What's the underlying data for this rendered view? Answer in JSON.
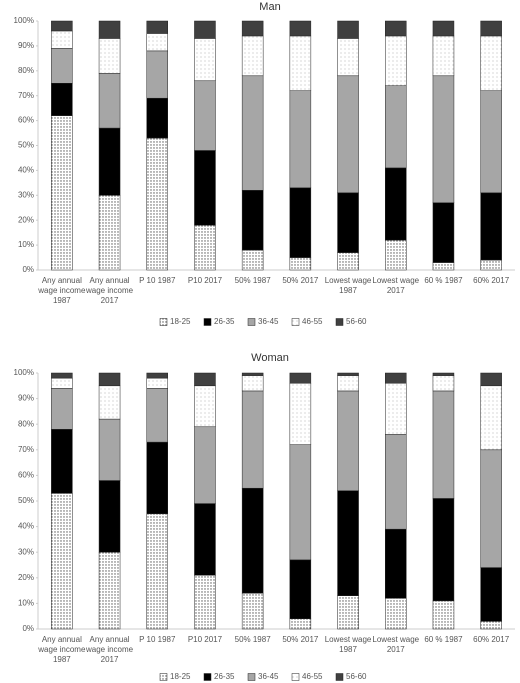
{
  "chart_data": [
    {
      "type": "stacked-bar",
      "title": "Man",
      "categories": [
        [
          "Any annual",
          "wage income",
          "1987"
        ],
        [
          "Any annual",
          "wage income",
          "2017"
        ],
        [
          "P 10 1987"
        ],
        [
          "P10 2017"
        ],
        [
          "50% 1987"
        ],
        [
          "50% 2017"
        ],
        [
          "Lowest wage",
          "1987"
        ],
        [
          "Lowest wage",
          "2017"
        ],
        [
          "60 % 1987"
        ],
        [
          "60% 2017"
        ]
      ],
      "series": [
        {
          "name": "18-25",
          "color": "#e6e6e6",
          "pattern": "dots",
          "values": [
            62,
            30,
            53,
            18,
            8,
            5,
            7,
            12,
            3,
            4
          ]
        },
        {
          "name": "26-35",
          "color": "#000000",
          "values": [
            13,
            27,
            16,
            30,
            24,
            28,
            24,
            29,
            24,
            27
          ]
        },
        {
          "name": "36-45",
          "color": "#a6a6a6",
          "values": [
            14,
            22,
            19,
            28,
            46,
            39,
            47,
            33,
            51,
            41
          ]
        },
        {
          "name": "46-55",
          "color": "#f7f7f7",
          "pattern": "dots",
          "values": [
            7,
            14,
            7,
            17,
            16,
            22,
            15,
            20,
            16,
            22
          ]
        },
        {
          "name": "56-60",
          "color": "#404040",
          "values": [
            4,
            7,
            5,
            7,
            6,
            6,
            7,
            6,
            6,
            6
          ]
        }
      ],
      "ylim": [
        0,
        100
      ],
      "yticks": [
        {
          "value": 0,
          "label": "0%"
        },
        {
          "value": 10,
          "label": "10%"
        },
        {
          "value": 20,
          "label": "20%"
        },
        {
          "value": 30,
          "label": "30%"
        },
        {
          "value": 40,
          "label": "40%"
        },
        {
          "value": 50,
          "label": "50%"
        },
        {
          "value": 60,
          "label": "60%"
        },
        {
          "value": 70,
          "label": "70%"
        },
        {
          "value": 80,
          "label": "80%"
        },
        {
          "value": 90,
          "label": "90%"
        },
        {
          "value": 100,
          "label": "100%"
        }
      ],
      "legend": "bottom"
    },
    {
      "type": "stacked-bar",
      "title": "Woman",
      "categories": [
        [
          "Any annual",
          "wage income",
          "1987"
        ],
        [
          "Any annual",
          "wage income",
          "2017"
        ],
        [
          "P 10 1987"
        ],
        [
          "P10 2017"
        ],
        [
          "50% 1987"
        ],
        [
          "50% 2017"
        ],
        [
          "Lowest wage",
          "1987"
        ],
        [
          "Lowest wage",
          "2017"
        ],
        [
          "60 % 1987"
        ],
        [
          "60% 2017"
        ]
      ],
      "series": [
        {
          "name": "18-25",
          "color": "#e6e6e6",
          "pattern": "dots",
          "values": [
            53,
            30,
            45,
            21,
            14,
            4,
            13,
            12,
            11,
            3
          ]
        },
        {
          "name": "26-35",
          "color": "#000000",
          "values": [
            25,
            28,
            28,
            28,
            41,
            23,
            41,
            27,
            40,
            21
          ]
        },
        {
          "name": "36-45",
          "color": "#a6a6a6",
          "values": [
            16,
            24,
            21,
            30,
            38,
            45,
            39,
            37,
            42,
            46
          ]
        },
        {
          "name": "46-55",
          "color": "#f7f7f7",
          "pattern": "dots",
          "values": [
            4,
            13,
            4,
            16,
            6,
            24,
            6,
            20,
            6,
            25
          ]
        },
        {
          "name": "56-60",
          "color": "#404040",
          "values": [
            2,
            5,
            2,
            5,
            1,
            4,
            1,
            4,
            1,
            5
          ]
        }
      ],
      "ylim": [
        0,
        100
      ],
      "yticks": [
        {
          "value": 0,
          "label": "0%"
        },
        {
          "value": 10,
          "label": "10%"
        },
        {
          "value": 20,
          "label": "20%"
        },
        {
          "value": 30,
          "label": "30%"
        },
        {
          "value": 40,
          "label": "40%"
        },
        {
          "value": 50,
          "label": "50%"
        },
        {
          "value": 60,
          "label": "60%"
        },
        {
          "value": 70,
          "label": "70%"
        },
        {
          "value": 80,
          "label": "80%"
        },
        {
          "value": 90,
          "label": "90%"
        },
        {
          "value": 100,
          "label": "100%"
        }
      ],
      "legend": "bottom"
    }
  ]
}
